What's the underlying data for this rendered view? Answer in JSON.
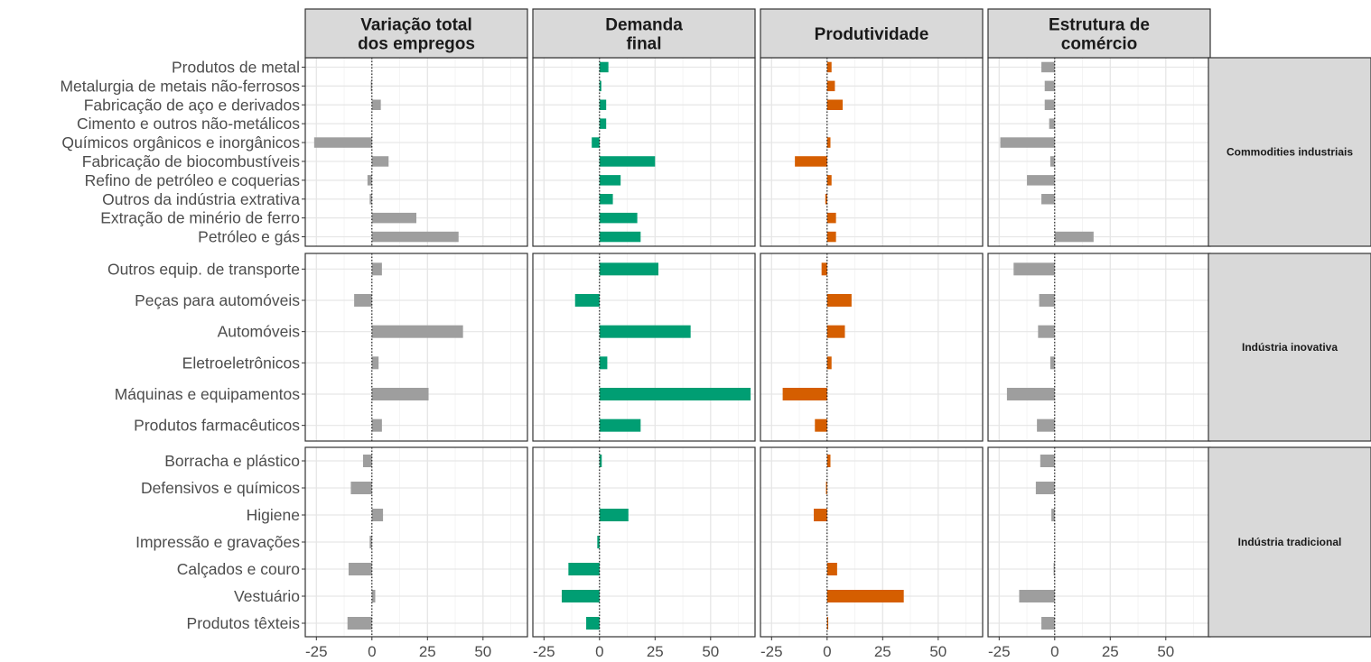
{
  "chart_data": {
    "type": "bar",
    "orientation": "horizontal",
    "title": "",
    "xlabel": "",
    "ylabel": "",
    "xlim": [
      -30,
      70
    ],
    "x_ticks": [
      -25,
      0,
      25,
      50
    ],
    "x_tick_labels": [
      "-25",
      "0",
      "25",
      "50"
    ],
    "grid": true,
    "colors": {
      "Variação total dos empregos": "#9e9e9e",
      "Demanda final": "#009e73",
      "Produtividade": "#d55e00",
      "Estrutura de comércio": "#9e9e9e"
    },
    "columns": [
      {
        "key": "total",
        "label_lines": [
          "Variação total",
          "dos empregos"
        ]
      },
      {
        "key": "demanda",
        "label_lines": [
          "Demanda",
          "final"
        ]
      },
      {
        "key": "produtividade",
        "label_lines": [
          "Produtividade"
        ]
      },
      {
        "key": "comercio",
        "label_lines": [
          "Estrutura de",
          "comércio"
        ]
      }
    ],
    "groups": [
      {
        "name": "Commodities industriais",
        "categories": [
          "Produtos de metal",
          "Metalurgia de metais não-ferrosos",
          "Fabricação de aço e derivados",
          "Cimento e outros não-metálicos",
          "Químicos orgânicos e inorgânicos",
          "Fabricação de biocombustíveis",
          "Refino de petróleo e coquerias",
          "Outros da indústria extrativa",
          "Extração de minério de ferro",
          "Petróleo e gás"
        ],
        "values": {
          "total": [
            0,
            -0.5,
            4,
            0,
            -26,
            7.5,
            -2,
            -1,
            20,
            39
          ],
          "demanda": [
            4,
            0.8,
            3,
            3,
            -3.5,
            25,
            9.5,
            6,
            17,
            18.5
          ],
          "produtividade": [
            2,
            3.5,
            7,
            0,
            1.5,
            -14.5,
            2,
            -0.8,
            4,
            4
          ],
          "comercio": [
            -6,
            -4.5,
            -4.5,
            -2.5,
            -24.5,
            -2,
            -12.5,
            -6,
            0,
            17.5
          ]
        }
      },
      {
        "name": "Indústria inovativa",
        "categories": [
          "Outros equip. de transporte",
          "Peças para automóveis",
          "Automóveis",
          "Eletroeletrônicos",
          "Máquinas e equipamentos",
          "Produtos farmacêuticos"
        ],
        "values": {
          "total": [
            4.5,
            -8,
            41,
            3,
            25.5,
            4.5
          ],
          "demanda": [
            26.5,
            -11,
            41,
            3.5,
            68,
            18.5
          ],
          "produtividade": [
            -2.5,
            11,
            8,
            2,
            -20,
            -5.5
          ],
          "comercio": [
            -18.5,
            -7,
            -7.5,
            -2,
            -21.5,
            -8
          ]
        }
      },
      {
        "name": "Indústria tradicional",
        "categories": [
          "Borracha e plástico",
          "Defensivos e químicos",
          "Higiene",
          "Impressão e gravações",
          "Calçados e couro",
          "Vestuário",
          "Produtos têxteis"
        ],
        "values": {
          "total": [
            -4,
            -9.5,
            5,
            -1,
            -10.5,
            1.5,
            -11
          ],
          "demanda": [
            1,
            0,
            13,
            -1,
            -14,
            -17,
            -6
          ],
          "produtividade": [
            1.5,
            -0.5,
            -6,
            0,
            4.5,
            34.5,
            0.5
          ],
          "comercio": [
            -6.5,
            -8.5,
            -1.5,
            0,
            -0.5,
            -16,
            -6
          ]
        }
      }
    ]
  }
}
